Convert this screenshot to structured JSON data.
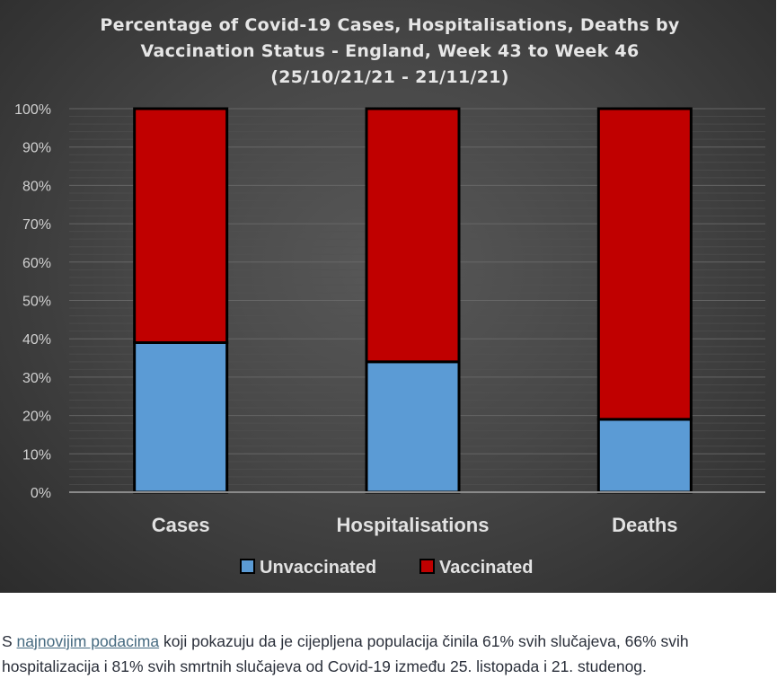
{
  "chart_data": {
    "type": "bar",
    "stacked": true,
    "percent": true,
    "title": [
      "Percentage of Covid-19 Cases, Hospitalisations, Deaths by",
      "Vaccination Status - England, Week 43 to Week 46",
      "(25/10/21/21 - 21/11/21)"
    ],
    "xlabel": "",
    "ylabel": "",
    "ylim": [
      0,
      100
    ],
    "yticks": [
      "0%",
      "10%",
      "20%",
      "30%",
      "40%",
      "50%",
      "60%",
      "70%",
      "80%",
      "90%",
      "100%"
    ],
    "categories": [
      "Cases",
      "Hospitalisations",
      "Deaths"
    ],
    "series": [
      {
        "name": "Unvaccinated",
        "color": "#5b9bd5",
        "values": [
          39,
          34,
          19
        ]
      },
      {
        "name": "Vaccinated",
        "color": "#c00000",
        "values": [
          61,
          66,
          81
        ]
      }
    ],
    "grid": true,
    "legend_position": "bottom"
  },
  "caption": {
    "prefix": "S ",
    "link": "najnovijim podacima",
    "rest": " koji pokazuju da je cijepljena populacija činila 61% svih slučajeva, 66% svih hospitalizacija i 81% svih smrtnih slučajeva od Covid-19 između 25. listopada i 21. studenog."
  }
}
